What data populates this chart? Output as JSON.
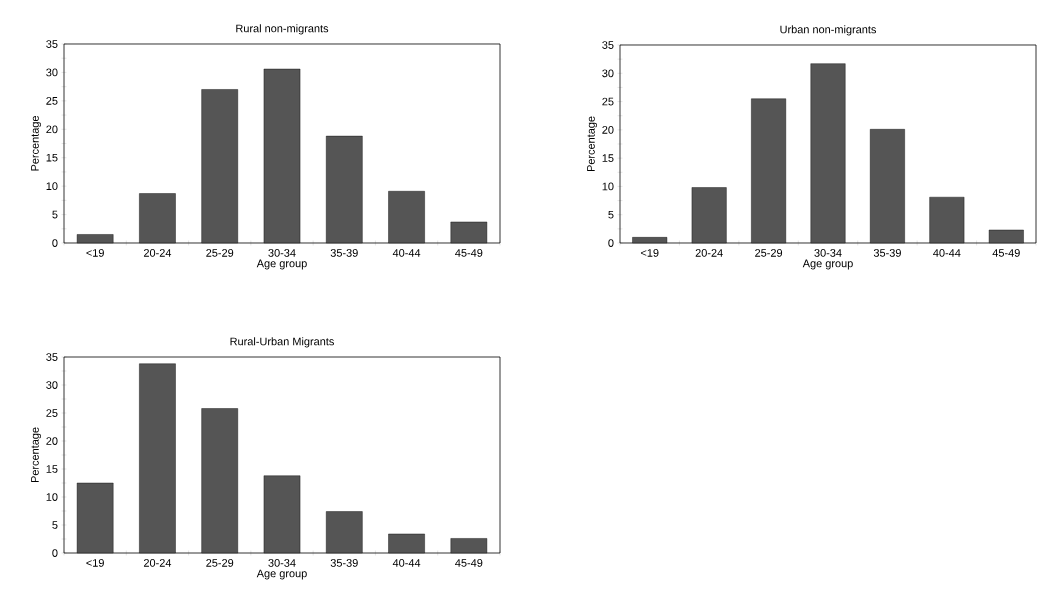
{
  "chart_data": [
    {
      "type": "bar",
      "title": "Rural non-migrants",
      "xlabel": "Age group",
      "ylabel": "Percentage",
      "categories": [
        "<19",
        "20-24",
        "25-29",
        "30-34",
        "35-39",
        "40-44",
        "45-49"
      ],
      "values": [
        1.5,
        8.7,
        27,
        30.6,
        18.8,
        9.1,
        3.7
      ],
      "color": "#555555",
      "ylim": [
        0,
        35
      ],
      "yticks": [
        0,
        5,
        10,
        15,
        20,
        25,
        30,
        35
      ]
    },
    {
      "type": "bar",
      "title": "Urban non-migrants",
      "xlabel": "Age group",
      "ylabel": "Percentage",
      "categories": [
        "<19",
        "20-24",
        "25-29",
        "30-34",
        "35-39",
        "40-44",
        "45-49"
      ],
      "values": [
        1.0,
        9.8,
        25.5,
        31.7,
        20.1,
        8.1,
        2.3
      ],
      "color": "#555555",
      "ylim": [
        0,
        35
      ],
      "yticks": [
        0,
        5,
        10,
        15,
        20,
        25,
        30,
        35
      ]
    },
    {
      "type": "bar",
      "title": "Rural-Urban Migrants",
      "xlabel": "Age group",
      "ylabel": "Percentage",
      "categories": [
        "<19",
        "20-24",
        "25-29",
        "30-34",
        "35-39",
        "40-44",
        "45-49"
      ],
      "values": [
        12.5,
        33.8,
        25.8,
        13.8,
        7.4,
        3.4,
        2.6
      ],
      "color": "#555555",
      "ylim": [
        0,
        35
      ],
      "yticks": [
        0,
        5,
        10,
        15,
        20,
        25,
        30,
        35
      ]
    }
  ]
}
